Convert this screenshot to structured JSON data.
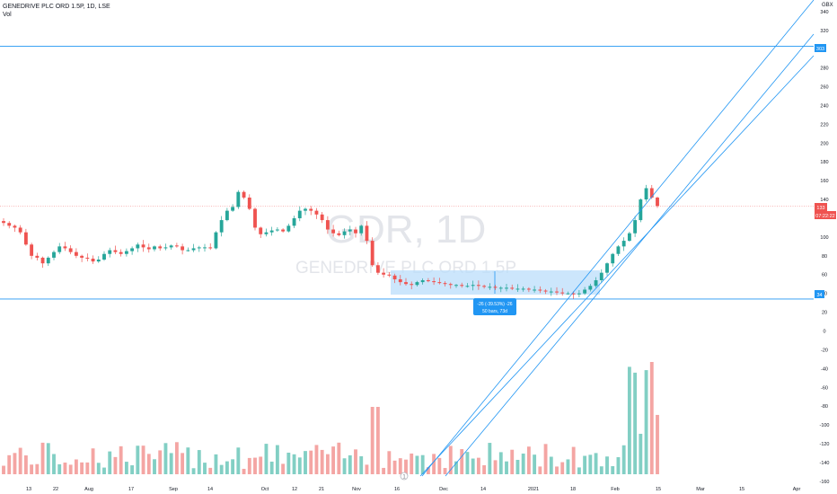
{
  "header": {
    "title": "GENEDRIVE PLC ORD 1.5P, 1D, LSE",
    "volume_label": "Vol",
    "currency": "GBX"
  },
  "watermark": {
    "symbol": "GDR, 1D",
    "name": "GENEDRIVE PLC ORD 1.5P"
  },
  "measure_tool": {
    "line1": "-26 (-39.53%) -26",
    "line2": "50 bars, 73d"
  },
  "price_tags": {
    "current_price": "133",
    "countdown": "07:22:22",
    "upper_level": "303",
    "lower_level": "34"
  },
  "colors": {
    "up": "#26a69a",
    "down": "#ef5350",
    "up_volume": "#82cfc4",
    "down_volume": "#f4a5a3",
    "trendline": "#2196f3",
    "measure_fill": "#bbdefb",
    "current_price_line": "#ef5350"
  },
  "chart_data": {
    "type": "candlestick",
    "title": "GENEDRIVE PLC ORD 1.5P, 1D, LSE",
    "y_axis": {
      "ticks": [
        340,
        320,
        280,
        260,
        240,
        220,
        200,
        180,
        160,
        140,
        100,
        80,
        60,
        40,
        20,
        0,
        -20,
        -40,
        -60,
        -80,
        -100,
        -120,
        -140,
        -160
      ],
      "range": [
        -160,
        340
      ],
      "unit": "GBX",
      "position": "right"
    },
    "x_axis": {
      "ticks": [
        "13",
        "22",
        "Aug",
        "17",
        "Sep",
        "14",
        "Oct",
        "12",
        "21",
        "Nov",
        "16",
        "Dec",
        "14",
        "2021",
        "18",
        "Feb",
        "15",
        "Mar",
        "15",
        "Apr"
      ]
    },
    "horizontal_lines": [
      303,
      34
    ],
    "current_price": 133,
    "measure_range": {
      "from": 65,
      "to": 39,
      "change": -26,
      "percent": -39.53,
      "bars": 50,
      "days": 73
    },
    "prices": [
      115,
      112,
      110,
      105,
      92,
      80,
      78,
      72,
      78,
      84,
      90,
      88,
      84,
      80,
      78,
      77,
      74,
      76,
      82,
      86,
      84,
      82,
      85,
      88,
      92,
      89,
      87,
      90,
      88,
      89,
      91,
      90,
      86,
      86,
      88,
      89,
      89,
      88,
      105,
      118,
      128,
      132,
      148,
      142,
      130,
      110,
      103,
      105,
      107,
      108,
      106,
      112,
      120,
      128,
      130,
      128,
      124,
      118,
      108,
      104,
      102,
      106,
      108,
      104,
      112,
      96,
      70,
      62,
      60,
      59,
      55,
      52,
      50,
      49,
      52,
      54,
      53,
      52,
      51,
      50,
      49,
      49,
      48,
      48,
      49,
      48,
      47,
      47,
      46,
      46,
      46,
      45,
      45,
      45,
      44,
      44,
      43,
      42,
      42,
      41,
      40,
      40,
      39,
      40,
      44,
      48,
      54,
      62,
      72,
      82,
      90,
      96,
      104,
      118,
      140,
      152,
      142,
      133
    ],
    "volume_note": "volume histogram rendered in lower pane"
  }
}
